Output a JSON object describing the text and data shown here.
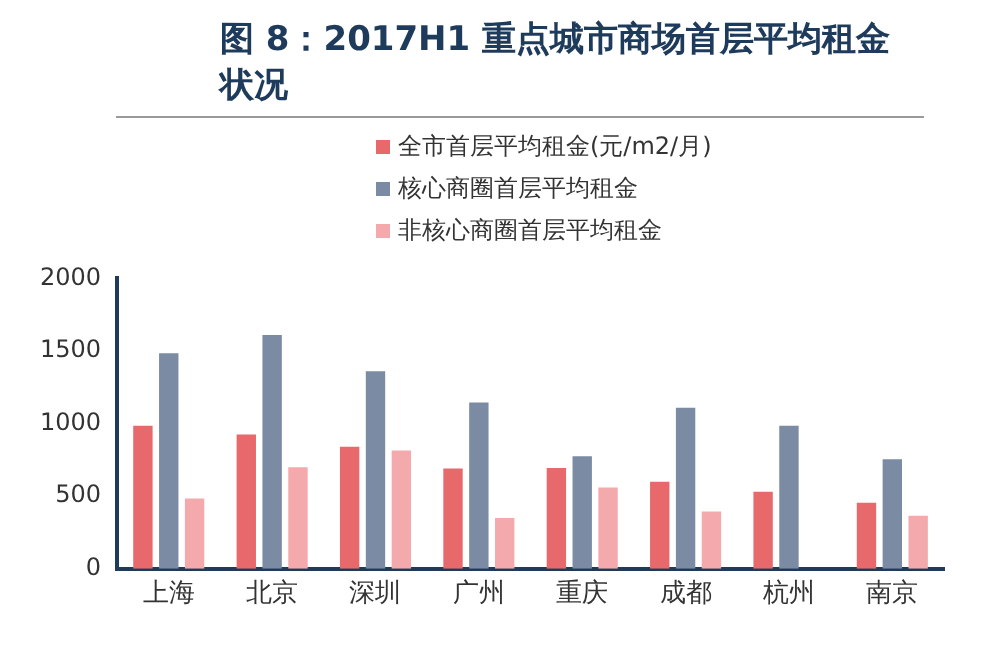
{
  "chart_data": {
    "type": "bar",
    "title": "图 8：2017H1 重点城市商场首层平均租金状况",
    "categories": [
      "上海",
      "北京",
      "深圳",
      "广州",
      "重庆",
      "成都",
      "杭州",
      "南京"
    ],
    "series": [
      {
        "name": "全市首层平均租金(元/m2/月)",
        "color": "#e8696b",
        "values": [
          985,
          925,
          840,
          690,
          695,
          600,
          530,
          455
        ]
      },
      {
        "name": "核心商圈首层平均租金",
        "color": "#7a8ba3",
        "values": [
          1485,
          1610,
          1360,
          1145,
          775,
          1110,
          985,
          755
        ]
      },
      {
        "name": "非核心商圈首层平均租金",
        "color": "#f4a9ad",
        "values": [
          485,
          700,
          815,
          350,
          560,
          395,
          null,
          365
        ]
      }
    ],
    "ylim": [
      0,
      2000
    ],
    "yticks": [
      0,
      500,
      1000,
      1500,
      2000
    ],
    "grid": false,
    "legend": "top"
  }
}
